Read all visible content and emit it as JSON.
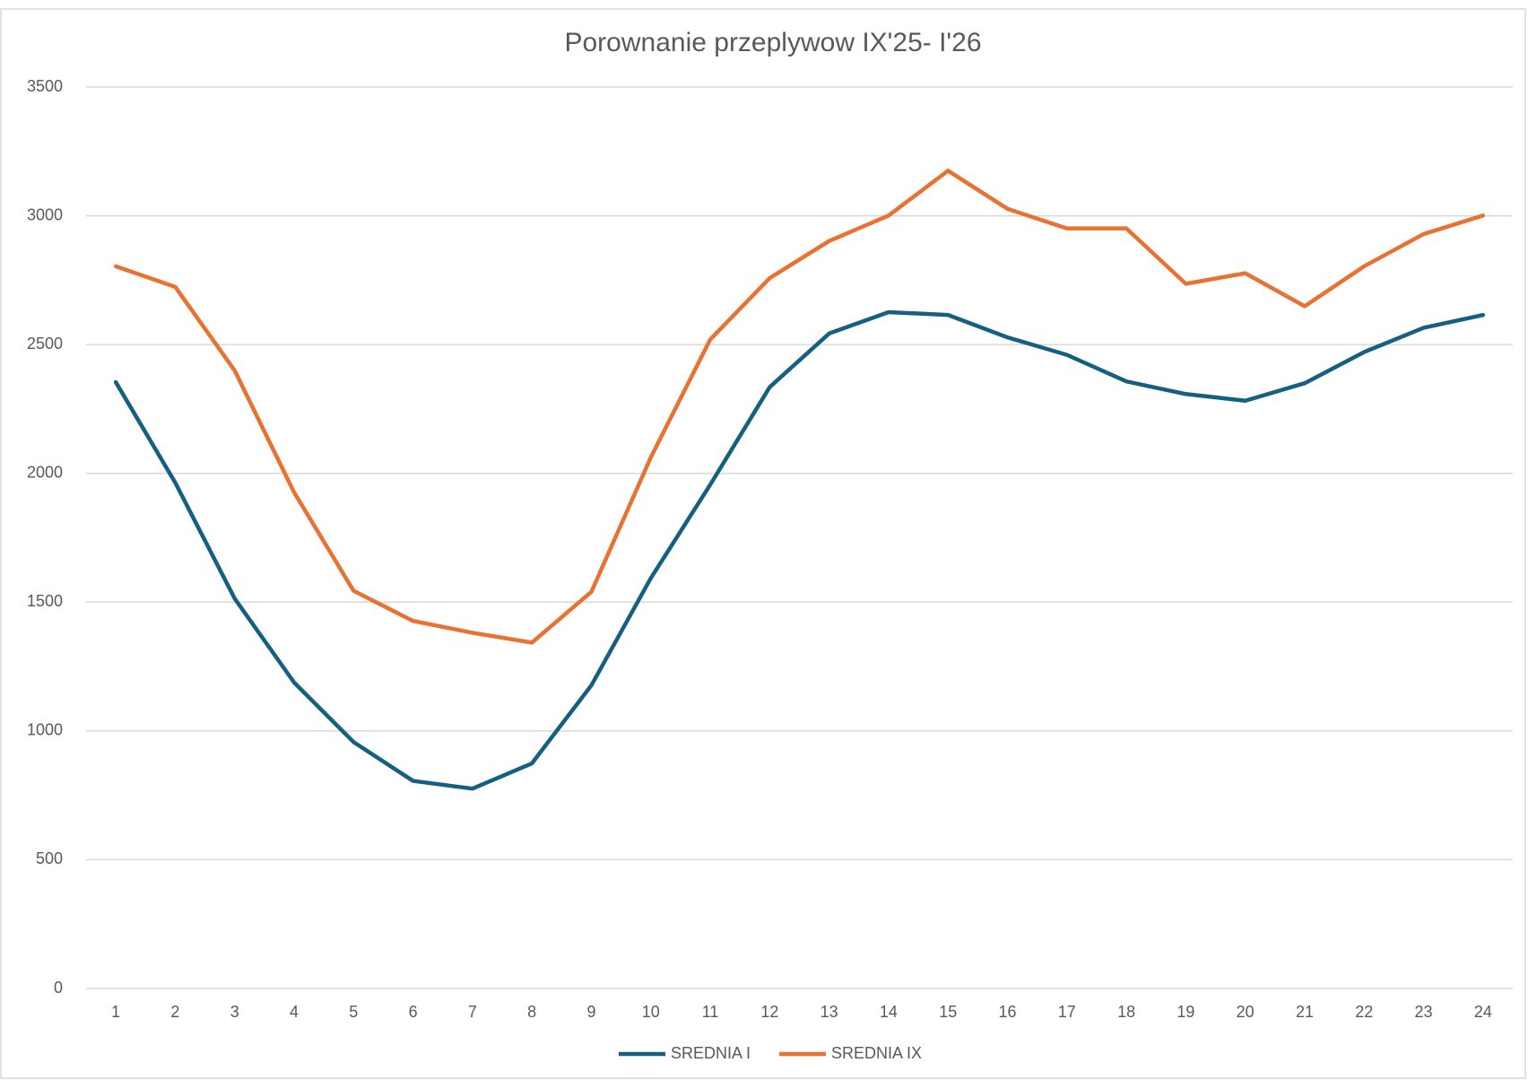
{
  "chart_data": {
    "type": "line",
    "title": "Porownanie przeplywow IX'25- I'26",
    "categories": [
      "1",
      "2",
      "3",
      "4",
      "5",
      "6",
      "7",
      "8",
      "9",
      "10",
      "11",
      "12",
      "13",
      "14",
      "15",
      "16",
      "17",
      "18",
      "19",
      "20",
      "21",
      "22",
      "23",
      "24"
    ],
    "series": [
      {
        "name": "SREDNIA I",
        "color": "#156082",
        "values": [
          2354,
          1964,
          1514,
          1188,
          957,
          806,
          776,
          874,
          1177,
          1593,
          1956,
          2335,
          2543,
          2626,
          2615,
          2528,
          2460,
          2357,
          2308,
          2282,
          2350,
          2471,
          2565,
          2615
        ]
      },
      {
        "name": "SREDNIA IX",
        "color": "#e97132",
        "values": [
          2804,
          2724,
          2399,
          1926,
          1544,
          1427,
          1381,
          1343,
          1540,
          2062,
          2520,
          2758,
          2902,
          3001,
          3175,
          3027,
          2951,
          2951,
          2736,
          2777,
          2649,
          2804,
          2929,
          3001
        ]
      }
    ],
    "ylim": [
      0,
      3500
    ],
    "yticks": [
      0,
      500,
      1000,
      1500,
      2000,
      2500,
      3000,
      3500
    ],
    "grid": true,
    "legend": "bottom"
  }
}
